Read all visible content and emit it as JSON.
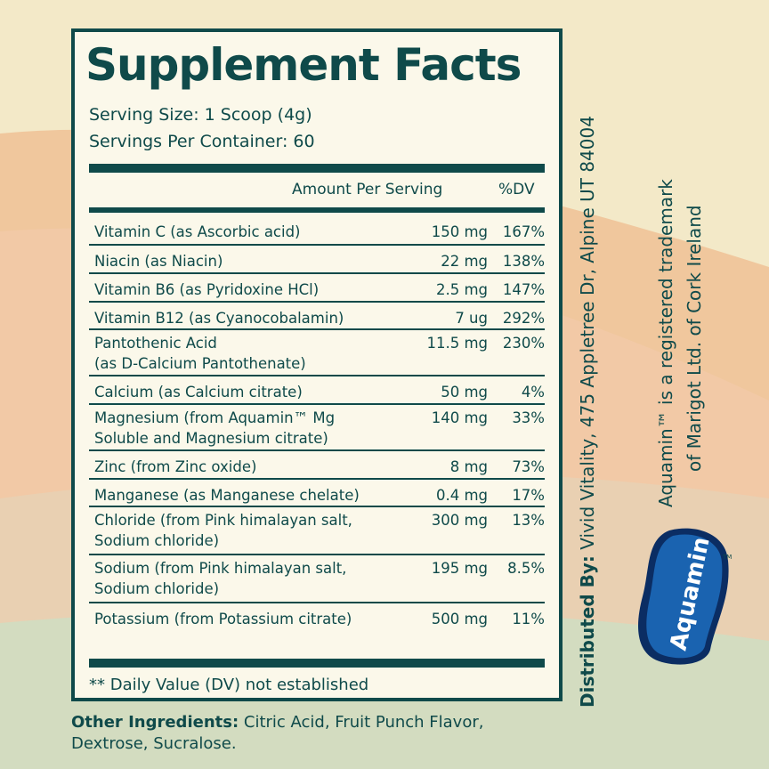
{
  "title": "Supplement Facts",
  "serving_size": "Serving Size: 1 Scoop (4g)",
  "servings_per_container": "Servings Per Container: 60",
  "header": {
    "amount": "Amount Per Serving",
    "dv": "%DV"
  },
  "rows": [
    {
      "name": "Vitamin C (as Ascorbic acid)",
      "amount": "150 mg",
      "dv": "167%"
    },
    {
      "name": "Niacin (as Niacin)",
      "amount": "22 mg",
      "dv": "138%"
    },
    {
      "name": "Vitamin B6 (as Pyridoxine HCl)",
      "amount": "2.5 mg",
      "dv": "147%"
    },
    {
      "name": "Vitamin B12 (as Cyanocobalamin)",
      "amount": "7 ug",
      "dv": "292%"
    },
    {
      "name": "Pantothenic Acid",
      "name2": "(as D-Calcium Pantothenate)",
      "amount": "11.5 mg",
      "dv": "230%"
    },
    {
      "name": "Calcium (as Calcium citrate)",
      "amount": "50 mg",
      "dv": "4%"
    },
    {
      "name": "Magnesium (from Aquamin™ Mg",
      "name2": "Soluble and Magnesium citrate)",
      "amount": "140 mg",
      "dv": "33%"
    },
    {
      "name": "Zinc (from Zinc oxide)",
      "amount": "8 mg",
      "dv": "73%"
    },
    {
      "name": "Manganese (as Manganese chelate)",
      "amount": "0.4 mg",
      "dv": "17%"
    },
    {
      "name": "Chloride (from Pink himalayan salt,",
      "name2": "Sodium chloride)",
      "amount": "300 mg",
      "dv": "13%"
    },
    {
      "name": "Sodium (from Pink himalayan salt,",
      "name2": "Sodium chloride)",
      "amount": "195 mg",
      "dv": "8.5%"
    },
    {
      "name": "Potassium (from Potassium citrate)",
      "amount": "500 mg",
      "dv": "11%"
    }
  ],
  "footnote": "** Daily Value (DV) not established",
  "other_ingredients": {
    "label": "Other Ingredients:",
    "text": " Citric Acid, Fruit Punch Flavor, Dextrose, Sucralose."
  },
  "distributor": {
    "label": "Distributed By:",
    "text": " Vivid Vitality, 475 Appletree Dr, Alpine UT 84004"
  },
  "trademark": {
    "line1": "Aquamin™ is a registered trademark",
    "line2": "of Marigot Ltd. of Cork Ireland"
  },
  "logo": {
    "text": "Aquamin",
    "tm": "TM"
  },
  "colors": {
    "ink": "#0f4a4a",
    "panel": "#fbf8ea",
    "logo_blue": "#1a63b0",
    "logo_dark": "#0b2d63"
  }
}
